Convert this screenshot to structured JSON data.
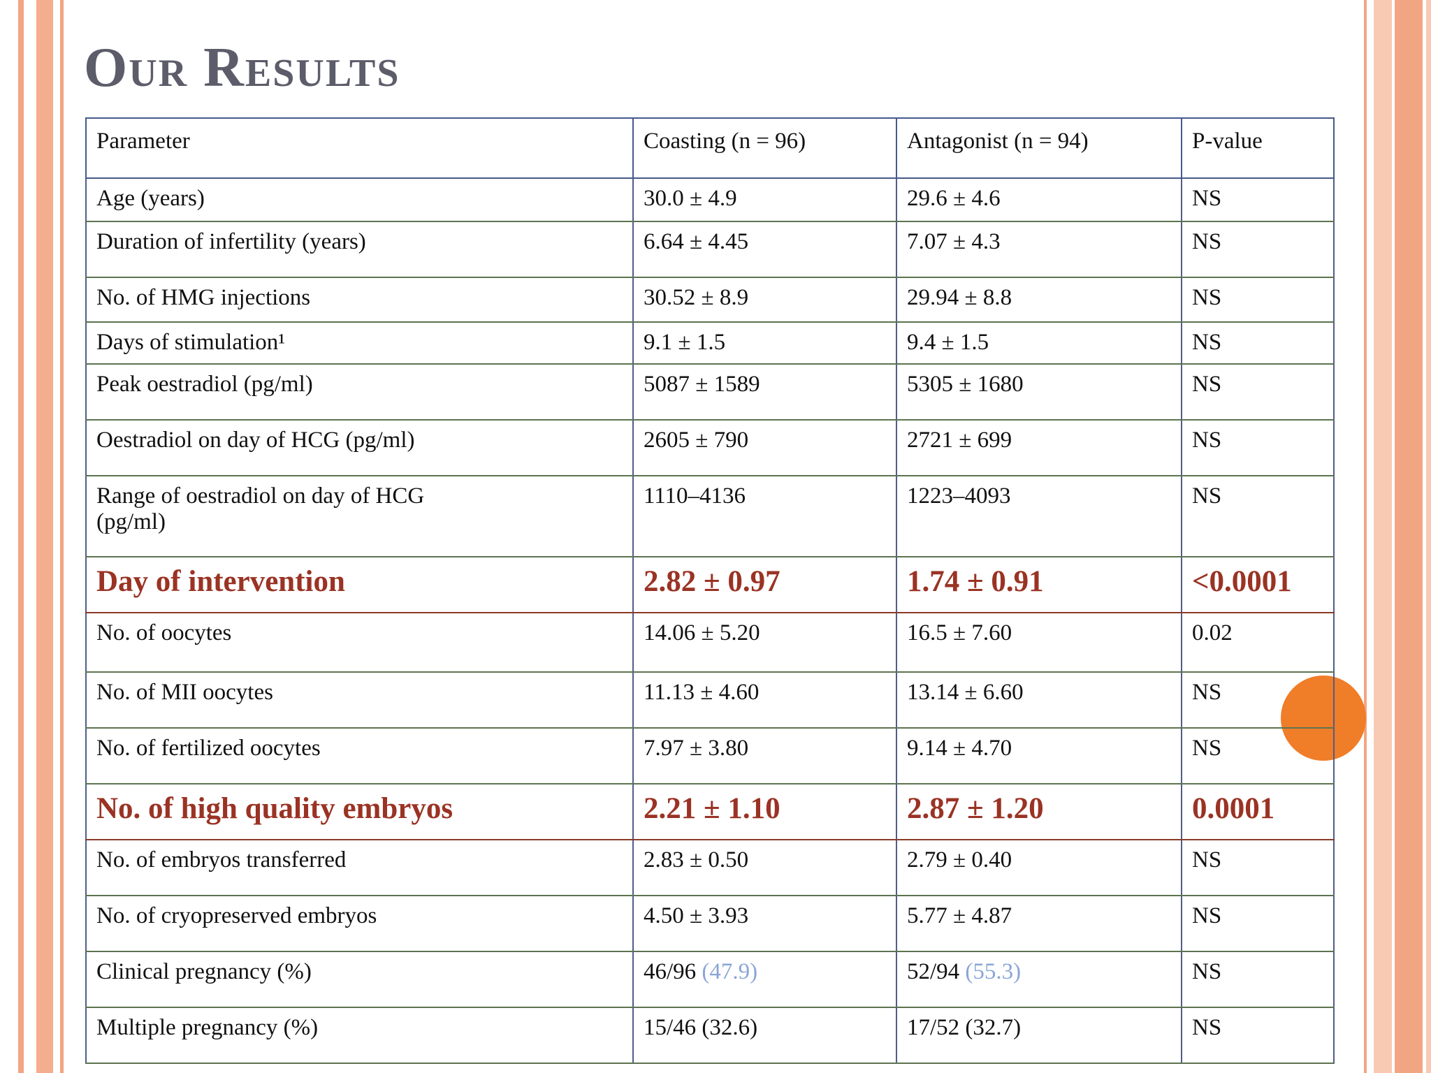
{
  "slide": {
    "title": "Our Results"
  },
  "colors": {
    "title_gray": "#5c5c6a",
    "emphasis_text": "#9a3324",
    "note_blue": "#8aa5d6",
    "accent_circle_orange": "#f07d28",
    "stripe_salmon": "#f2a583"
  },
  "table": {
    "headers": [
      "Parameter",
      "Coasting (n = 96)",
      "Antagonist (n = 94)",
      "P-value"
    ],
    "rows": [
      {
        "cells": [
          "Age (years)",
          "30.0 ± 4.9",
          "29.6 ± 4.6",
          "NS"
        ],
        "emphasis": false,
        "indent": false
      },
      {
        "cells": [
          "Duration of infertility (years)",
          "6.64 ± 4.45",
          "7.07 ± 4.3",
          "NS"
        ],
        "emphasis": false,
        "indent": false
      },
      {
        "cells": [
          "No. of HMG injections",
          "30.52 ± 8.9",
          "29.94 ± 8.8",
          "NS"
        ],
        "emphasis": false,
        "indent": false
      },
      {
        "cells": [
          "Days of stimulation¹",
          "9.1 ± 1.5",
          "9.4 ± 1.5",
          "NS"
        ],
        "emphasis": false,
        "indent": false
      },
      {
        "cells": [
          "Peak oestradiol (pg/ml)",
          "5087 ± 1589",
          "5305 ± 1680",
          "NS"
        ],
        "emphasis": false,
        "indent": false
      },
      {
        "cells": [
          "Oestradiol on day of HCG (pg/ml)",
          "2605 ± 790",
          "2721 ± 699",
          "NS"
        ],
        "emphasis": false,
        "indent": false
      },
      {
        "cells": [
          "Range of oestradiol on day of HCG\n(pg/ml)",
          "1110–4136",
          "1223–4093",
          "NS"
        ],
        "emphasis": false,
        "indent": false
      },
      {
        "cells": [
          "Day of intervention",
          "2.82 ± 0.97",
          "1.74 ± 0.91",
          "<0.0001"
        ],
        "emphasis": true,
        "indent": false
      },
      {
        "cells": [
          "No. of oocytes",
          "14.06 ± 5.20",
          "16.5 ± 7.60",
          "0.02"
        ],
        "emphasis": false,
        "indent": false
      },
      {
        "cells": [
          "No. of MII oocytes",
          "11.13 ± 4.60",
          "13.14 ± 6.60",
          "NS"
        ],
        "emphasis": false,
        "indent": false
      },
      {
        "cells": [
          "No. of fertilized oocytes",
          "7.97 ± 3.80",
          "9.14 ± 4.70",
          "NS"
        ],
        "emphasis": false,
        "indent": true
      },
      {
        "cells": [
          "No. of high quality embryos",
          "2.21 ± 1.10",
          "2.87 ± 1.20",
          "0.0001"
        ],
        "emphasis": true,
        "indent": true
      },
      {
        "cells": [
          "No. of embryos transferred",
          "2.83 ± 0.50",
          "2.79 ± 0.40",
          "NS"
        ],
        "emphasis": false,
        "indent": true
      },
      {
        "cells": [
          "No. of cryopreserved embryos",
          "4.50 ± 3.93",
          "5.77 ± 4.87",
          "NS"
        ],
        "emphasis": false,
        "indent": true
      },
      {
        "cells": [
          "Clinical pregnancy (%)",
          {
            "text": "46/96 ",
            "note": "(47.9)"
          },
          {
            "text": "52/94 ",
            "note": "(55.3)"
          },
          "NS"
        ],
        "emphasis": false,
        "indent": false
      },
      {
        "cells": [
          "Multiple pregnancy (%)",
          "15/46 (32.6)",
          "17/52 (32.7)",
          "NS"
        ],
        "emphasis": false,
        "indent": false
      }
    ]
  }
}
